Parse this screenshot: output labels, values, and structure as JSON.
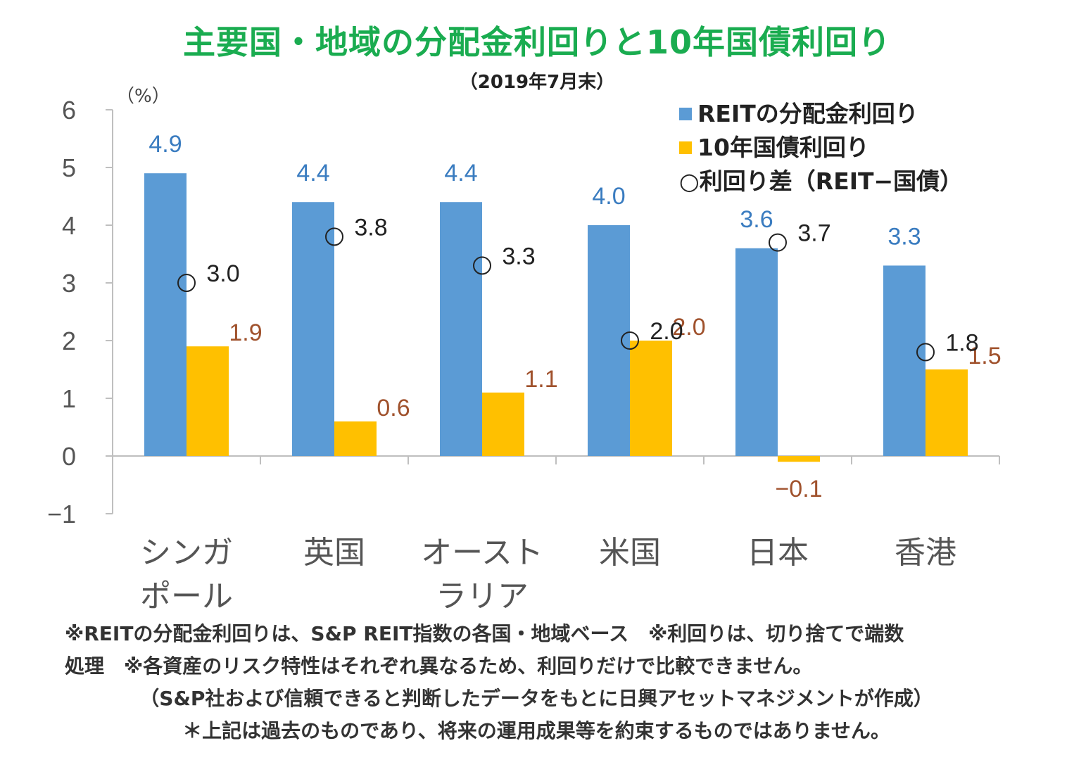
{
  "chart_data": {
    "type": "bar",
    "title": "主要国・地域の分配金利回りと10年国債利回り",
    "subtitle": "（2019年7月末）",
    "unit_label": "（%）",
    "categories": [
      [
        "シンガ",
        "ポール"
      ],
      [
        "英国"
      ],
      [
        "オースト",
        "ラリア"
      ],
      [
        "米国"
      ],
      [
        "日本"
      ],
      [
        "香港"
      ]
    ],
    "series": [
      {
        "name": "REITの分配金利回り",
        "values": [
          4.9,
          4.4,
          4.4,
          4.0,
          3.6,
          3.3
        ],
        "color": "#5b9bd5",
        "label_color": "#3a7cc0",
        "labels": [
          "4.9",
          "4.4",
          "4.4",
          "4.0",
          "3.6",
          "3.3"
        ]
      },
      {
        "name": "10年国債利回り",
        "values": [
          1.9,
          0.6,
          1.1,
          2.0,
          -0.1,
          1.5
        ],
        "color": "#ffc000",
        "label_color": "#a0522d",
        "labels": [
          "1.9",
          "0.6",
          "1.1",
          "2.0",
          "−0.1",
          "1.5"
        ]
      }
    ],
    "spread": {
      "name": "○利回り差（REIT−国債）",
      "values": [
        3.0,
        3.8,
        3.3,
        2.0,
        3.7,
        1.8
      ],
      "labels": [
        "3.0",
        "3.8",
        "3.3",
        "2.0",
        "3.7",
        "1.8"
      ]
    },
    "yticks": [
      "6",
      "5",
      "4",
      "3",
      "2",
      "1",
      "0",
      "−1"
    ],
    "ylim": [
      -1,
      6
    ],
    "grid": false,
    "legend_position": "top-right"
  },
  "notes": {
    "line1": "※REITの分配金利回りは、S&P REIT指数の各国・地域ベース　※利回りは、切り捨てで端数",
    "line2": "処理　※各資産のリスク特性はそれぞれ異なるため、利回りだけで比較できません。",
    "line3": "（S&P社および信頼できると判断したデータをもとに日興アセットマネジメントが作成）",
    "line4": "＊上記は過去のものであり、将来の運用成果等を約束するものではありません。"
  }
}
